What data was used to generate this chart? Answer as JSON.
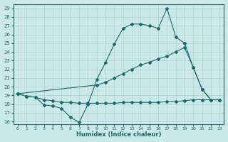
{
  "xlabel": "Humidex (Indice chaleur)",
  "bg_color": "#cce8e8",
  "grid_color": "#b0d4d4",
  "line_color": "#1a6b6b",
  "xlim": [
    -0.5,
    23.5
  ],
  "ylim": [
    16,
    29.5
  ],
  "yticks": [
    16,
    17,
    18,
    19,
    20,
    21,
    22,
    23,
    24,
    25,
    26,
    27,
    28,
    29
  ],
  "xticks": [
    0,
    1,
    2,
    3,
    4,
    5,
    6,
    7,
    8,
    9,
    10,
    11,
    12,
    13,
    14,
    15,
    16,
    17,
    18,
    19,
    20,
    21,
    22,
    23
  ],
  "line1_x": [
    0,
    1,
    2,
    3,
    4,
    5,
    6,
    7,
    8,
    9,
    10,
    11,
    12,
    13,
    14,
    15,
    16,
    17,
    18,
    19,
    20,
    21,
    22,
    23
  ],
  "line1_y": [
    19.2,
    18.9,
    18.8,
    17.9,
    17.8,
    17.5,
    16.5,
    15.9,
    18.0,
    20.8,
    22.8,
    24.9,
    26.7,
    27.2,
    27.2,
    27.0,
    26.7,
    29.0,
    25.7,
    25.0,
    22.2,
    19.7,
    18.5,
    18.5
  ],
  "line2_x": [
    0,
    9,
    10,
    11,
    12,
    13,
    14,
    15,
    16,
    17,
    18,
    19,
    20,
    21,
    22,
    23
  ],
  "line2_y": [
    19.2,
    20.2,
    20.5,
    21.0,
    21.5,
    22.0,
    22.5,
    22.8,
    23.2,
    23.5,
    24.0,
    24.5,
    22.2,
    19.7,
    18.5,
    18.5
  ],
  "line3_x": [
    0,
    1,
    2,
    3,
    4,
    5,
    6,
    7,
    8,
    9,
    10,
    11,
    12,
    13,
    14,
    15,
    16,
    17,
    18,
    19,
    20,
    21,
    22,
    23
  ],
  "line3_y": [
    19.2,
    18.9,
    18.8,
    18.5,
    18.4,
    18.2,
    18.2,
    18.1,
    18.1,
    18.1,
    18.1,
    18.1,
    18.2,
    18.2,
    18.2,
    18.2,
    18.2,
    18.3,
    18.3,
    18.4,
    18.5,
    18.5,
    18.5,
    18.5
  ]
}
